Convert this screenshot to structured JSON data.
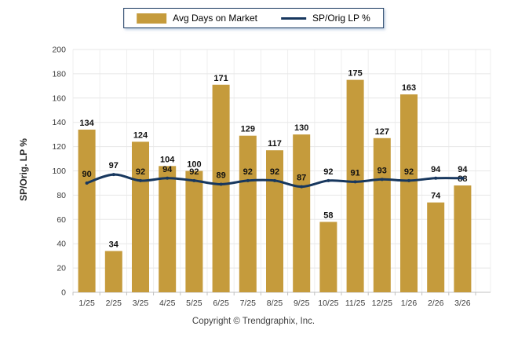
{
  "chart": {
    "legend": {
      "bar_label": "Avg Days on Market",
      "line_label": "SP/Orig LP %"
    },
    "ylabel": "SP/Orig. LP %",
    "footer": "Copyright © Trendgraphix, Inc."
  },
  "colors": {
    "bar": "#C59B3C",
    "line": "#17375E",
    "grid_horizontal": "#E7E7E7",
    "grid_vertical": "#EFEFEF",
    "axis": "#C0C0C0",
    "value_label": "#111111",
    "tick_text": "#3C3C3C",
    "background": "#FFFFFF"
  },
  "chart_data": {
    "type": "bar+line",
    "title": "",
    "xlabel": "",
    "ylabel": "SP/Orig. LP %",
    "ylim": [
      0,
      200
    ],
    "ytick_step": 20,
    "grid": true,
    "legend_position": "top",
    "categories": [
      "1/25",
      "2/25",
      "3/25",
      "4/25",
      "5/25",
      "6/25",
      "7/25",
      "8/25",
      "9/25",
      "10/25",
      "11/25",
      "12/25",
      "1/26",
      "2/26",
      "3/26"
    ],
    "series": [
      {
        "name": "Avg Days on Market",
        "type": "bar",
        "color": "#C59B3C",
        "values": [
          134,
          34,
          124,
          104,
          100,
          171,
          129,
          117,
          130,
          58,
          175,
          127,
          163,
          74,
          88
        ]
      },
      {
        "name": "SP/Orig LP %",
        "type": "line",
        "color": "#17375E",
        "values": [
          90,
          97,
          92,
          94,
          92,
          89,
          92,
          92,
          87,
          92,
          91,
          93,
          92,
          94,
          94
        ]
      }
    ]
  }
}
